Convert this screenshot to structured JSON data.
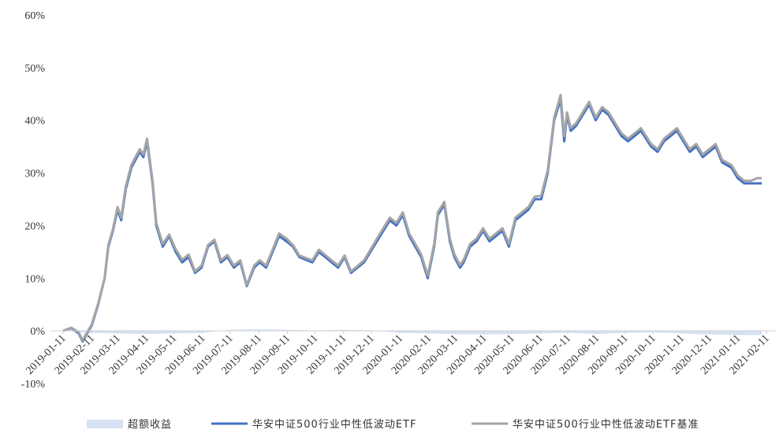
{
  "chart_data": {
    "type": "line",
    "title": "",
    "xlabel": "",
    "ylabel": "",
    "ylim": [
      -0.1,
      0.6
    ],
    "y_ticks": [
      "60%",
      "50%",
      "40%",
      "30%",
      "20%",
      "10%",
      "0%",
      "-10%"
    ],
    "x_ticks": [
      "2019-01-11",
      "2019-02-11",
      "2019-03-11",
      "2019-04-11",
      "2019-05-11",
      "2019-06-11",
      "2019-07-11",
      "2019-08-11",
      "2019-09-11",
      "2019-10-11",
      "2019-11-11",
      "2019-12-11",
      "2020-01-11",
      "2020-02-11",
      "2020-03-11",
      "2020-04-11",
      "2020-05-11",
      "2020-06-11",
      "2020-07-11",
      "2020-08-11",
      "2020-09-11",
      "2020-10-11",
      "2020-11-11",
      "2020-12-11",
      "2021-01-11",
      "2021-02-11"
    ],
    "grid": false,
    "legend_position": "bottom",
    "colors": {
      "excess": "#d6e2f3",
      "etf": "#4472c4",
      "benchmark": "#a5a5a5"
    },
    "series": [
      {
        "name": "超额收益",
        "kind": "area",
        "x": [
          "2019-01-11",
          "2019-02-11",
          "2019-03-11",
          "2019-04-11",
          "2019-05-11",
          "2019-06-11",
          "2019-07-11",
          "2019-08-11",
          "2019-09-11",
          "2019-10-11",
          "2019-11-11",
          "2019-12-11",
          "2020-01-11",
          "2020-02-11",
          "2020-03-11",
          "2020-04-11",
          "2020-05-11",
          "2020-06-11",
          "2020-07-11",
          "2020-08-11",
          "2020-09-11",
          "2020-10-11",
          "2020-11-11",
          "2020-12-11",
          "2021-01-11",
          "2021-02-06"
        ],
        "values": [
          0.0,
          -0.004,
          -0.005,
          -0.006,
          -0.005,
          -0.004,
          0.002,
          0.003,
          0.002,
          0.001,
          0.002,
          0.001,
          -0.004,
          -0.005,
          -0.006,
          -0.007,
          -0.006,
          -0.005,
          -0.004,
          -0.006,
          -0.004,
          -0.003,
          -0.005,
          -0.007,
          -0.008,
          -0.008
        ]
      },
      {
        "name": "华安中证500行业中性低波动ETF",
        "kind": "line",
        "x": [
          "2019-01-11",
          "2019-01-20",
          "2019-01-28",
          "2019-02-01",
          "2019-02-11",
          "2019-02-18",
          "2019-02-25",
          "2019-03-01",
          "2019-03-06",
          "2019-03-11",
          "2019-03-15",
          "2019-03-20",
          "2019-03-26",
          "2019-04-04",
          "2019-04-08",
          "2019-04-12",
          "2019-04-18",
          "2019-04-22",
          "2019-04-29",
          "2019-05-06",
          "2019-05-13",
          "2019-05-20",
          "2019-05-27",
          "2019-06-03",
          "2019-06-10",
          "2019-06-17",
          "2019-06-24",
          "2019-07-01",
          "2019-07-08",
          "2019-07-15",
          "2019-07-22",
          "2019-07-29",
          "2019-08-06",
          "2019-08-12",
          "2019-08-19",
          "2019-08-26",
          "2019-09-02",
          "2019-09-10",
          "2019-09-17",
          "2019-09-24",
          "2019-10-08",
          "2019-10-15",
          "2019-10-22",
          "2019-10-29",
          "2019-11-05",
          "2019-11-12",
          "2019-11-19",
          "2019-11-26",
          "2019-12-03",
          "2019-12-10",
          "2019-12-17",
          "2019-12-24",
          "2019-12-31",
          "2020-01-07",
          "2020-01-14",
          "2020-01-21",
          "2020-02-03",
          "2020-02-10",
          "2020-02-17",
          "2020-02-21",
          "2020-02-28",
          "2020-03-05",
          "2020-03-10",
          "2020-03-16",
          "2020-03-20",
          "2020-03-27",
          "2020-04-03",
          "2020-04-10",
          "2020-04-17",
          "2020-04-24",
          "2020-05-01",
          "2020-05-08",
          "2020-05-15",
          "2020-05-22",
          "2020-05-29",
          "2020-06-05",
          "2020-06-12",
          "2020-06-19",
          "2020-06-26",
          "2020-07-03",
          "2020-07-07",
          "2020-07-10",
          "2020-07-14",
          "2020-07-20",
          "2020-07-27",
          "2020-08-03",
          "2020-08-10",
          "2020-08-17",
          "2020-08-24",
          "2020-08-31",
          "2020-09-07",
          "2020-09-14",
          "2020-09-21",
          "2020-09-28",
          "2020-10-09",
          "2020-10-16",
          "2020-10-23",
          "2020-10-30",
          "2020-11-06",
          "2020-11-13",
          "2020-11-20",
          "2020-11-27",
          "2020-12-04",
          "2020-12-11",
          "2020-12-18",
          "2020-12-25",
          "2021-01-04",
          "2021-01-11",
          "2021-01-18",
          "2021-01-25",
          "2021-02-01",
          "2021-02-06"
        ],
        "values": [
          0.0,
          0.005,
          -0.005,
          -0.02,
          0.01,
          0.05,
          0.1,
          0.16,
          0.19,
          0.23,
          0.21,
          0.27,
          0.31,
          0.34,
          0.33,
          0.36,
          0.28,
          0.2,
          0.16,
          0.18,
          0.15,
          0.13,
          0.14,
          0.11,
          0.12,
          0.16,
          0.17,
          0.13,
          0.14,
          0.12,
          0.13,
          0.085,
          0.12,
          0.13,
          0.12,
          0.15,
          0.18,
          0.17,
          0.16,
          0.14,
          0.13,
          0.15,
          0.14,
          0.13,
          0.12,
          0.14,
          0.11,
          0.12,
          0.13,
          0.15,
          0.17,
          0.19,
          0.21,
          0.2,
          0.22,
          0.18,
          0.14,
          0.1,
          0.16,
          0.22,
          0.24,
          0.17,
          0.14,
          0.12,
          0.13,
          0.16,
          0.17,
          0.19,
          0.17,
          0.18,
          0.19,
          0.16,
          0.21,
          0.22,
          0.23,
          0.25,
          0.25,
          0.3,
          0.4,
          0.44,
          0.36,
          0.41,
          0.38,
          0.39,
          0.41,
          0.43,
          0.4,
          0.42,
          0.41,
          0.39,
          0.37,
          0.36,
          0.37,
          0.38,
          0.35,
          0.34,
          0.36,
          0.37,
          0.38,
          0.36,
          0.34,
          0.35,
          0.33,
          0.34,
          0.35,
          0.32,
          0.31,
          0.29,
          0.28,
          0.28,
          0.28,
          0.28
        ]
      },
      {
        "name": "华安中证500行业中性低波动ETF基准",
        "kind": "line",
        "x": [
          "2019-01-11",
          "2019-01-20",
          "2019-01-28",
          "2019-02-01",
          "2019-02-11",
          "2019-02-18",
          "2019-02-25",
          "2019-03-01",
          "2019-03-06",
          "2019-03-11",
          "2019-03-15",
          "2019-03-20",
          "2019-03-26",
          "2019-04-04",
          "2019-04-08",
          "2019-04-12",
          "2019-04-18",
          "2019-04-22",
          "2019-04-29",
          "2019-05-06",
          "2019-05-13",
          "2019-05-20",
          "2019-05-27",
          "2019-06-03",
          "2019-06-10",
          "2019-06-17",
          "2019-06-24",
          "2019-07-01",
          "2019-07-08",
          "2019-07-15",
          "2019-07-22",
          "2019-07-29",
          "2019-08-06",
          "2019-08-12",
          "2019-08-19",
          "2019-08-26",
          "2019-09-02",
          "2019-09-10",
          "2019-09-17",
          "2019-09-24",
          "2019-10-08",
          "2019-10-15",
          "2019-10-22",
          "2019-10-29",
          "2019-11-05",
          "2019-11-12",
          "2019-11-19",
          "2019-11-26",
          "2019-12-03",
          "2019-12-10",
          "2019-12-17",
          "2019-12-24",
          "2019-12-31",
          "2020-01-07",
          "2020-01-14",
          "2020-01-21",
          "2020-02-03",
          "2020-02-10",
          "2020-02-17",
          "2020-02-21",
          "2020-02-28",
          "2020-03-05",
          "2020-03-10",
          "2020-03-16",
          "2020-03-20",
          "2020-03-27",
          "2020-04-03",
          "2020-04-10",
          "2020-04-17",
          "2020-04-24",
          "2020-05-01",
          "2020-05-08",
          "2020-05-15",
          "2020-05-22",
          "2020-05-29",
          "2020-06-05",
          "2020-06-12",
          "2020-06-19",
          "2020-06-26",
          "2020-07-03",
          "2020-07-07",
          "2020-07-10",
          "2020-07-14",
          "2020-07-20",
          "2020-07-27",
          "2020-08-03",
          "2020-08-10",
          "2020-08-17",
          "2020-08-24",
          "2020-08-31",
          "2020-09-07",
          "2020-09-14",
          "2020-09-21",
          "2020-09-28",
          "2020-10-09",
          "2020-10-16",
          "2020-10-23",
          "2020-10-30",
          "2020-11-06",
          "2020-11-13",
          "2020-11-20",
          "2020-11-27",
          "2020-12-04",
          "2020-12-11",
          "2020-12-18",
          "2020-12-25",
          "2021-01-04",
          "2021-01-11",
          "2021-01-18",
          "2021-01-25",
          "2021-02-01",
          "2021-02-06"
        ],
        "values": [
          0.0,
          0.006,
          -0.003,
          -0.018,
          0.012,
          0.052,
          0.1,
          0.163,
          0.193,
          0.235,
          0.215,
          0.275,
          0.315,
          0.345,
          0.335,
          0.365,
          0.285,
          0.205,
          0.165,
          0.183,
          0.155,
          0.135,
          0.145,
          0.113,
          0.124,
          0.163,
          0.173,
          0.134,
          0.144,
          0.124,
          0.134,
          0.087,
          0.124,
          0.134,
          0.124,
          0.154,
          0.185,
          0.175,
          0.163,
          0.143,
          0.134,
          0.154,
          0.144,
          0.134,
          0.124,
          0.143,
          0.113,
          0.123,
          0.134,
          0.154,
          0.175,
          0.195,
          0.215,
          0.205,
          0.225,
          0.185,
          0.145,
          0.105,
          0.165,
          0.225,
          0.245,
          0.175,
          0.145,
          0.125,
          0.135,
          0.165,
          0.175,
          0.195,
          0.175,
          0.185,
          0.195,
          0.165,
          0.215,
          0.225,
          0.235,
          0.255,
          0.257,
          0.305,
          0.405,
          0.448,
          0.37,
          0.415,
          0.385,
          0.395,
          0.415,
          0.435,
          0.405,
          0.425,
          0.415,
          0.395,
          0.375,
          0.365,
          0.375,
          0.385,
          0.355,
          0.345,
          0.365,
          0.375,
          0.385,
          0.365,
          0.345,
          0.355,
          0.335,
          0.345,
          0.355,
          0.325,
          0.315,
          0.295,
          0.285,
          0.285,
          0.29,
          0.29
        ]
      }
    ]
  }
}
